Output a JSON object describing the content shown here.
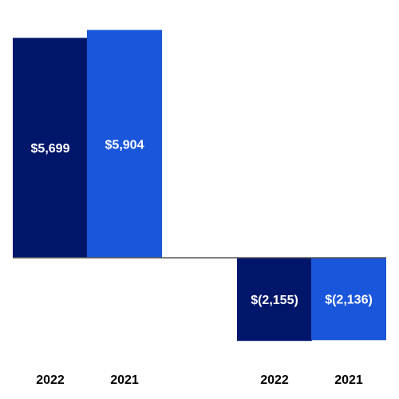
{
  "chart_data": {
    "type": "bar",
    "categories": [
      "2022",
      "2021",
      "2022",
      "2021"
    ],
    "values": [
      5699,
      5904,
      -2155,
      -2136
    ],
    "value_labels": [
      "$5,699",
      "$5,904",
      "$(2,155)",
      "$(2,136)"
    ],
    "title": "",
    "xlabel": "",
    "ylabel": "",
    "grid": false,
    "legend": "none",
    "colors": {
      "2022": "#00166b",
      "2021": "#1a56db",
      "baseline": "#555555"
    }
  }
}
